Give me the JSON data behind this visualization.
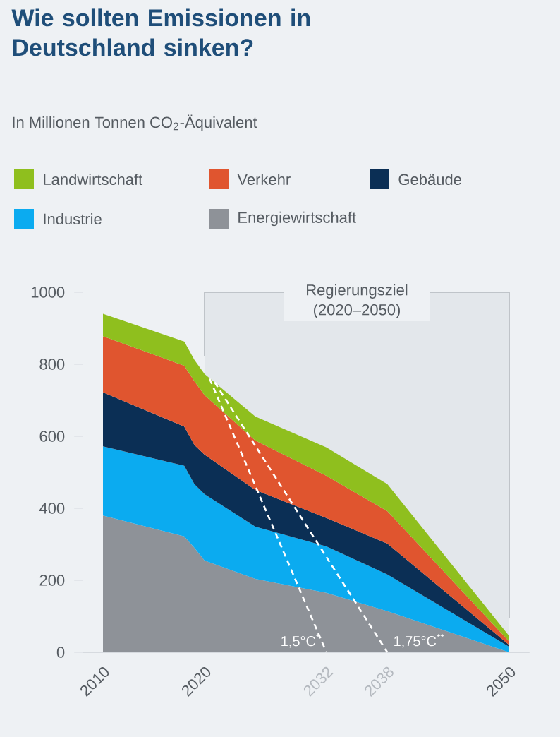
{
  "chart_data": {
    "type": "area",
    "stacked": true,
    "title": "Wie sollten Emissionen in Deutschland sinken?",
    "subtitle": "In Millionen Tonnen CO$_{2}$-Äquivalent",
    "x": [
      2010,
      2018,
      2019,
      2020,
      2025,
      2032,
      2038,
      2050
    ],
    "series": [
      {
        "name": "Energiewirtschaft",
        "color": "#8e9298",
        "values": [
          380,
          322,
          290,
          255,
          204,
          165,
          114,
          0
        ]
      },
      {
        "name": "Industrie",
        "color": "#0babf0",
        "values": [
          192,
          196,
          177,
          184,
          145,
          129,
          102,
          15
        ]
      },
      {
        "name": "Gebäude",
        "color": "#0b2f55",
        "values": [
          150,
          109,
          109,
          110,
          102,
          79,
          86,
          5
        ]
      },
      {
        "name": "Verkehr",
        "color": "#e0552f",
        "values": [
          156,
          169,
          177,
          165,
          137,
          117,
          90,
          10
        ]
      },
      {
        "name": "Landwirtschaft",
        "color": "#8fbf1e",
        "values": [
          62,
          67,
          59,
          59,
          67,
          79,
          75,
          15
        ]
      },
      {
        "type": "line",
        "color": "#ffffff",
        "line_style": "dashed",
        "x": [
          2020.5,
          2032
        ],
        "values": [
          760,
          0
        ]
      },
      {
        "type": "line",
        "color": "#ffffff",
        "line_style": "dashed",
        "x": [
          2021,
          2038
        ],
        "values": [
          750,
          0
        ]
      }
    ],
    "xlim": [
      2008,
      2052
    ],
    "ylim": [
      0,
      1000
    ],
    "xticks": [
      2010,
      2020,
      2032,
      2038,
      2050
    ],
    "yticks": [
      0,
      200,
      400,
      600,
      800,
      1000
    ],
    "legend": "top",
    "bands": [
      {
        "axis": "x",
        "from": 2020,
        "to": 2050,
        "label": "Regierungsziel (2020–2050)",
        "color": "#e3e7eb"
      }
    ],
    "annotations": [
      "1,5°C$^{*}$",
      "1,75°C$^{**}$"
    ]
  }
}
